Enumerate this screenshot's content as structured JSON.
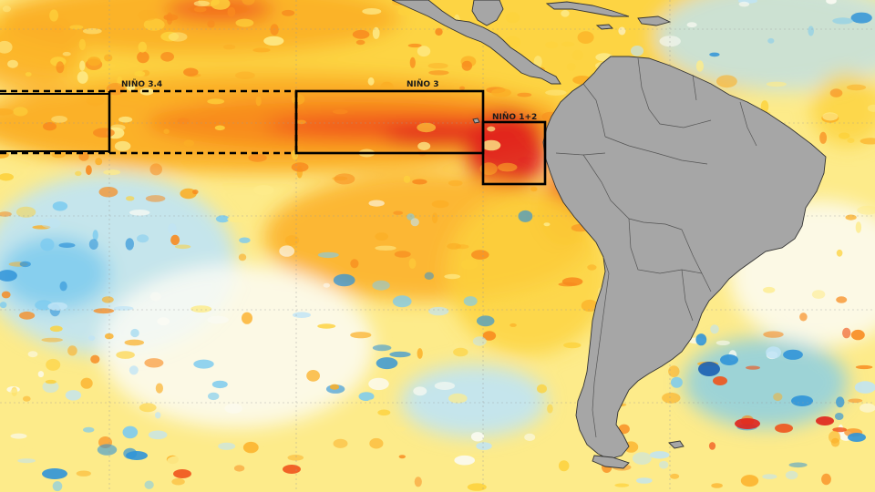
{
  "map": {
    "land_color": "#a6a6a6",
    "coastline_color": "#333333",
    "box_color": "#000000",
    "palette": {
      "deep_red": "#e0231c",
      "red_orange": "#f0541c",
      "orange": "#f88a1e",
      "amber": "#fbae25",
      "yellow": "#fdd23c",
      "pale_yellow": "#fdeb8a",
      "white": "#fbfbf4",
      "pale_blue": "#bfe4f6",
      "light_blue": "#7ccbef",
      "blue": "#2f93d8",
      "dark_blue": "#1b5fb3"
    },
    "regions": [
      {
        "id": "nino-34",
        "label": "NIÑO 3.4"
      },
      {
        "id": "nino-3",
        "label": "NIÑO 3"
      },
      {
        "id": "nino-12",
        "label": "NIÑO 1+2"
      }
    ]
  }
}
